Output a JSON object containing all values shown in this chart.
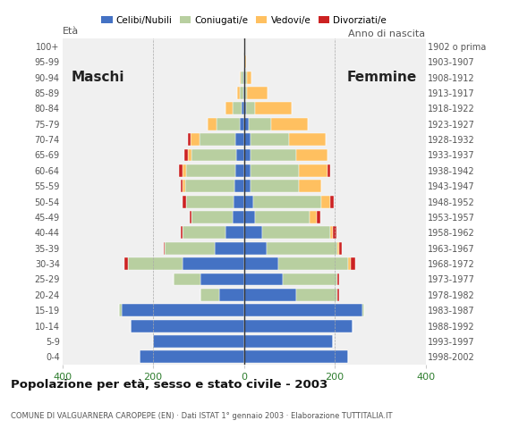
{
  "age_groups": [
    "0-4",
    "5-9",
    "10-14",
    "15-19",
    "20-24",
    "25-29",
    "30-34",
    "35-39",
    "40-44",
    "45-49",
    "50-54",
    "55-59",
    "60-64",
    "65-69",
    "70-74",
    "75-79",
    "80-84",
    "85-89",
    "90-94",
    "95-99",
    "100+"
  ],
  "birth_years": [
    "1998-2002",
    "1993-1997",
    "1988-1992",
    "1983-1987",
    "1978-1982",
    "1973-1977",
    "1968-1972",
    "1963-1967",
    "1958-1962",
    "1953-1957",
    "1948-1952",
    "1943-1947",
    "1938-1942",
    "1933-1937",
    "1928-1932",
    "1923-1927",
    "1918-1922",
    "1913-1917",
    "1908-1912",
    "1903-1907",
    "1902 o prima"
  ],
  "males": {
    "celibi": [
      230,
      200,
      250,
      270,
      55,
      95,
      135,
      65,
      40,
      25,
      22,
      20,
      18,
      16,
      18,
      10,
      5,
      2,
      2,
      0,
      0
    ],
    "coniugati": [
      0,
      0,
      0,
      5,
      40,
      60,
      120,
      110,
      95,
      90,
      105,
      110,
      110,
      100,
      80,
      50,
      20,
      8,
      5,
      0,
      0
    ],
    "vedovi": [
      0,
      0,
      0,
      0,
      0,
      0,
      0,
      0,
      0,
      0,
      0,
      5,
      8,
      8,
      20,
      20,
      15,
      5,
      2,
      0,
      0
    ],
    "divorziati": [
      0,
      0,
      0,
      0,
      0,
      0,
      8,
      2,
      5,
      5,
      8,
      5,
      8,
      8,
      5,
      0,
      0,
      0,
      0,
      0,
      0
    ]
  },
  "females": {
    "celibi": [
      230,
      195,
      240,
      260,
      115,
      85,
      75,
      50,
      40,
      25,
      20,
      15,
      15,
      15,
      15,
      10,
      5,
      2,
      2,
      0,
      0
    ],
    "coniugati": [
      0,
      0,
      0,
      5,
      90,
      120,
      155,
      155,
      150,
      120,
      150,
      105,
      105,
      100,
      85,
      50,
      20,
      5,
      5,
      0,
      0
    ],
    "vedovi": [
      0,
      0,
      0,
      0,
      0,
      0,
      5,
      5,
      5,
      15,
      20,
      50,
      65,
      70,
      80,
      80,
      80,
      45,
      10,
      5,
      0
    ],
    "divorziati": [
      0,
      0,
      0,
      0,
      5,
      5,
      10,
      5,
      8,
      8,
      8,
      0,
      5,
      0,
      0,
      0,
      0,
      0,
      0,
      0,
      0
    ]
  },
  "colors": {
    "celibi": "#4472c4",
    "coniugati": "#b8cfa0",
    "vedovi": "#ffc060",
    "divorziati": "#cc2222"
  },
  "xlim": 400,
  "title": "Popolazione per età, sesso e stato civile - 2003",
  "subtitle": "COMUNE DI VALGUARNERA CAROPEPE (EN) · Dati ISTAT 1° gennaio 2003 · Elaborazione TUTTITALIA.IT",
  "legend_labels": [
    "Celibi/Nubili",
    "Coniugati/e",
    "Vedovi/e",
    "Divorziati/e"
  ],
  "ylabel_left": "Età",
  "ylabel_right": "Anno di nascita",
  "label_maschi": "Maschi",
  "label_femmine": "Femmine",
  "bg_color": "#f0f0f0",
  "text_color": "#555555",
  "green_color": "#2e7d2e"
}
